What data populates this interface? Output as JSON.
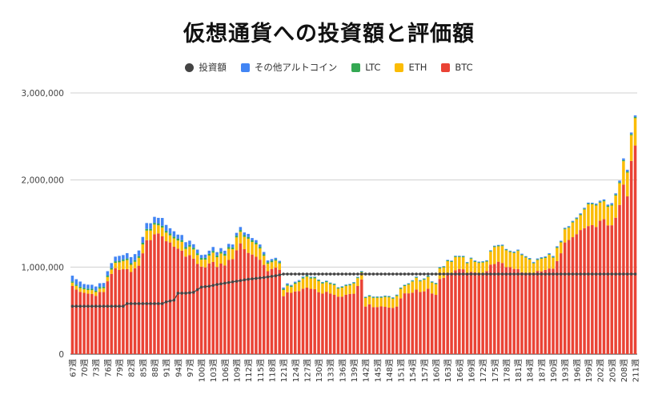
{
  "chart_data": {
    "type": "bar",
    "title": "仮想通貨への投資額と評価額",
    "stacked": true,
    "legend": [
      {
        "name": "投資額",
        "color": "#444444",
        "kind": "line-dot"
      },
      {
        "name": "その他アルトコイン",
        "color": "#4285f4",
        "kind": "bar"
      },
      {
        "name": "LTC",
        "color": "#34a853",
        "kind": "bar"
      },
      {
        "name": "ETH",
        "color": "#fbbc04",
        "kind": "bar"
      },
      {
        "name": "BTC",
        "color": "#ea4335",
        "kind": "bar"
      }
    ],
    "ylim": [
      0,
      3000000
    ],
    "y_ticks": [
      "0",
      "1,000,000",
      "2,000,000",
      "3,000,000"
    ],
    "y_tick_values": [
      0,
      1000000,
      2000000,
      3000000
    ],
    "x_week_start": 67,
    "x_week_end": 211,
    "x_label_suffix": "週",
    "x_tick_labels": [
      "67週",
      "70週",
      "73週",
      "76週",
      "79週",
      "82週",
      "85週",
      "88週",
      "91週",
      "94週",
      "97週",
      "100週",
      "103週",
      "106週",
      "109週",
      "112週",
      "115週",
      "118週",
      "121週",
      "124週",
      "127週",
      "130週",
      "133週",
      "136週",
      "139週",
      "142週",
      "145週",
      "148週",
      "151週",
      "154週",
      "157週",
      "160週",
      "163週",
      "166週",
      "169週",
      "172週",
      "175週",
      "178週",
      "181週",
      "184週",
      "187週",
      "190週",
      "193週",
      "196週",
      "199週",
      "202週",
      "205週",
      "208週",
      "211週"
    ],
    "btc_anchors": [
      [
        67,
        760000
      ],
      [
        70,
        700000
      ],
      [
        73,
        690000
      ],
      [
        75,
        720000
      ],
      [
        76,
        850000
      ],
      [
        78,
        960000
      ],
      [
        80,
        1000000
      ],
      [
        82,
        950000
      ],
      [
        84,
        1000000
      ],
      [
        86,
        1300000
      ],
      [
        88,
        1380000
      ],
      [
        90,
        1380000
      ],
      [
        92,
        1250000
      ],
      [
        94,
        1200000
      ],
      [
        96,
        1130000
      ],
      [
        98,
        1100000
      ],
      [
        100,
        1000000
      ],
      [
        102,
        1050000
      ],
      [
        104,
        1020000
      ],
      [
        106,
        1010000
      ],
      [
        108,
        1120000
      ],
      [
        110,
        1240000
      ],
      [
        112,
        1160000
      ],
      [
        114,
        1110000
      ],
      [
        116,
        1000000
      ],
      [
        118,
        960000
      ],
      [
        120,
        980000
      ],
      [
        121,
        680000
      ],
      [
        123,
        700000
      ],
      [
        125,
        720000
      ],
      [
        127,
        760000
      ],
      [
        129,
        760000
      ],
      [
        131,
        700000
      ],
      [
        133,
        700000
      ],
      [
        135,
        680000
      ],
      [
        137,
        680000
      ],
      [
        139,
        700000
      ],
      [
        141,
        880000
      ],
      [
        142,
        560000
      ],
      [
        145,
        550000
      ],
      [
        148,
        540000
      ],
      [
        150,
        550000
      ],
      [
        152,
        700000
      ],
      [
        154,
        720000
      ],
      [
        156,
        720000
      ],
      [
        158,
        750000
      ],
      [
        160,
        680000
      ],
      [
        161,
        870000
      ],
      [
        163,
        920000
      ],
      [
        165,
        960000
      ],
      [
        167,
        950000
      ],
      [
        169,
        920000
      ],
      [
        171,
        930000
      ],
      [
        173,
        960000
      ],
      [
        175,
        1060000
      ],
      [
        177,
        1020000
      ],
      [
        179,
        1000000
      ],
      [
        181,
        990000
      ],
      [
        183,
        920000
      ],
      [
        185,
        930000
      ],
      [
        187,
        950000
      ],
      [
        189,
        970000
      ],
      [
        191,
        1050000
      ],
      [
        193,
        1250000
      ],
      [
        195,
        1320000
      ],
      [
        197,
        1400000
      ],
      [
        199,
        1480000
      ],
      [
        201,
        1460000
      ],
      [
        203,
        1530000
      ],
      [
        205,
        1500000
      ],
      [
        206,
        1530000
      ],
      [
        207,
        1700000
      ],
      [
        208,
        1900000
      ],
      [
        209,
        1860000
      ],
      [
        210,
        2270000
      ],
      [
        211,
        2460000
      ]
    ],
    "eth_anchors": [
      [
        67,
        40000
      ],
      [
        75,
        40000
      ],
      [
        78,
        60000
      ],
      [
        80,
        100000
      ],
      [
        84,
        80000
      ],
      [
        86,
        110000
      ],
      [
        88,
        100000
      ],
      [
        92,
        90000
      ],
      [
        96,
        100000
      ],
      [
        100,
        90000
      ],
      [
        104,
        100000
      ],
      [
        108,
        120000
      ],
      [
        110,
        150000
      ],
      [
        114,
        150000
      ],
      [
        118,
        80000
      ],
      [
        120,
        70000
      ],
      [
        123,
        70000
      ],
      [
        127,
        130000
      ],
      [
        131,
        130000
      ],
      [
        135,
        100000
      ],
      [
        139,
        110000
      ],
      [
        141,
        80000
      ],
      [
        142,
        100000
      ],
      [
        148,
        110000
      ],
      [
        150,
        120000
      ],
      [
        152,
        90000
      ],
      [
        154,
        120000
      ],
      [
        158,
        130000
      ],
      [
        161,
        110000
      ],
      [
        163,
        140000
      ],
      [
        165,
        140000
      ],
      [
        169,
        140000
      ],
      [
        173,
        110000
      ],
      [
        175,
        180000
      ],
      [
        177,
        190000
      ],
      [
        181,
        190000
      ],
      [
        185,
        130000
      ],
      [
        189,
        150000
      ],
      [
        191,
        140000
      ],
      [
        193,
        140000
      ],
      [
        195,
        180000
      ],
      [
        197,
        170000
      ],
      [
        199,
        230000
      ],
      [
        201,
        220000
      ],
      [
        203,
        230000
      ],
      [
        205,
        230000
      ],
      [
        207,
        240000
      ],
      [
        209,
        290000
      ],
      [
        210,
        330000
      ],
      [
        211,
        340000
      ]
    ],
    "ltc_anchors": [
      [
        67,
        15000
      ],
      [
        90,
        20000
      ],
      [
        110,
        20000
      ],
      [
        120,
        15000
      ],
      [
        140,
        10000
      ],
      [
        160,
        10000
      ],
      [
        180,
        8000
      ],
      [
        200,
        10000
      ],
      [
        211,
        14000
      ]
    ],
    "alt_anchors": [
      [
        67,
        60000
      ],
      [
        74,
        40000
      ],
      [
        76,
        50000
      ],
      [
        80,
        60000
      ],
      [
        84,
        70000
      ],
      [
        86,
        60000
      ],
      [
        88,
        70000
      ],
      [
        90,
        80000
      ],
      [
        92,
        60000
      ],
      [
        96,
        50000
      ],
      [
        100,
        40000
      ],
      [
        104,
        40000
      ],
      [
        108,
        35000
      ],
      [
        110,
        35000
      ],
      [
        114,
        30000
      ],
      [
        118,
        20000
      ],
      [
        120,
        15000
      ],
      [
        124,
        10000
      ],
      [
        130,
        5000
      ],
      [
        140,
        5000
      ],
      [
        160,
        5000
      ],
      [
        180,
        8000
      ],
      [
        200,
        10000
      ],
      [
        211,
        20000
      ]
    ],
    "invest_anchors": [
      [
        67,
        550000
      ],
      [
        80,
        550000
      ],
      [
        81,
        580000
      ],
      [
        90,
        580000
      ],
      [
        91,
        600000
      ],
      [
        93,
        620000
      ],
      [
        94,
        700000
      ],
      [
        96,
        700000
      ],
      [
        98,
        710000
      ],
      [
        100,
        770000
      ],
      [
        102,
        780000
      ],
      [
        104,
        800000
      ],
      [
        108,
        830000
      ],
      [
        112,
        860000
      ],
      [
        116,
        880000
      ],
      [
        119,
        900000
      ],
      [
        121,
        920000
      ],
      [
        211,
        920000
      ]
    ]
  }
}
